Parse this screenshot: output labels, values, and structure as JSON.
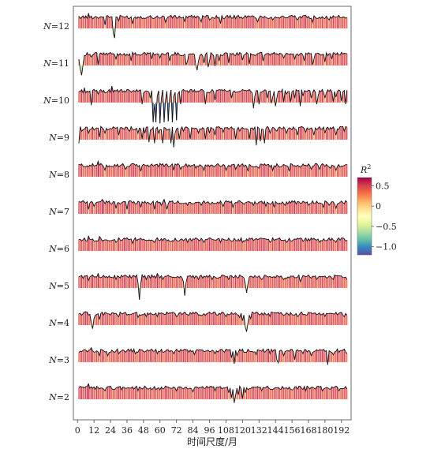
{
  "chart_data": {
    "type": "line",
    "title": "",
    "xlabel": "时间尺度/月",
    "ylabel": "",
    "xlim": [
      -3,
      199
    ],
    "x_ticks": [
      0,
      12,
      24,
      36,
      48,
      60,
      72,
      84,
      96,
      108,
      120,
      132,
      144,
      156,
      168,
      180,
      192
    ],
    "x_tick_labels": [
      "0",
      "12",
      "24",
      "36",
      "48",
      "60",
      "72",
      "84",
      "96",
      "108",
      "120",
      "132",
      "144",
      "156",
      "168",
      "180",
      "192"
    ],
    "x_range": [
      1,
      196
    ],
    "value_range_per_row": [
      -1.2,
      0.7
    ],
    "grid": false,
    "row_labels_top_to_bottom": [
      "N=12",
      "N=11",
      "N=10",
      "N=9",
      "N=8",
      "N=7",
      "N=6",
      "N=5",
      "N=4",
      "N=3",
      "N=2"
    ],
    "colorbar": {
      "title_base": "R",
      "title_sup": "2",
      "placement": "right",
      "range": [
        -1.2,
        0.7
      ],
      "ticks": [
        0.5,
        0,
        -0.5,
        -1.0
      ],
      "tick_labels": [
        "0.5",
        "0",
        "−0.5",
        "−1.0"
      ],
      "colormap": "Spectral",
      "colors": [
        "#9e0142",
        "#d53e4f",
        "#f46d43",
        "#fdae61",
        "#fee08b",
        "#ffffbf",
        "#e6f598",
        "#abdda4",
        "#66c2a5",
        "#3288bd",
        "#5e4fa2"
      ]
    },
    "series": [
      {
        "name": "N=12",
        "baseline": 0.45,
        "anomalies": [
          [
            8,
            0.62
          ],
          [
            20,
            0.05
          ],
          [
            26,
            -0.35
          ],
          [
            27,
            -0.6
          ],
          [
            30,
            0.25
          ],
          [
            40,
            0.1
          ],
          [
            64,
            0.18
          ],
          [
            78,
            0.2
          ],
          [
            90,
            0.2
          ],
          [
            96,
            0.3
          ],
          [
            104,
            0.12
          ],
          [
            131,
            0.2
          ],
          [
            142,
            0.3
          ],
          [
            160,
            0.3
          ],
          [
            171,
            0.18
          ],
          [
            183,
            0.3
          ]
        ]
      },
      {
        "name": "N=11",
        "baseline": 0.45,
        "anomalies": [
          [
            1,
            0.2
          ],
          [
            2,
            -0.3
          ],
          [
            3,
            -0.6
          ],
          [
            4,
            -0.1
          ],
          [
            10,
            0.3
          ],
          [
            15,
            -0.1
          ],
          [
            28,
            0.2
          ],
          [
            39,
            0.1
          ],
          [
            54,
            0.2
          ],
          [
            60,
            0.25
          ],
          [
            67,
            0.1
          ],
          [
            79,
            -0.1
          ],
          [
            80,
            0.1
          ],
          [
            86,
            -0.1
          ],
          [
            87,
            -0.35
          ],
          [
            88,
            0.1
          ],
          [
            92,
            0.0
          ],
          [
            95,
            -0.2
          ],
          [
            96,
            0.1
          ],
          [
            100,
            -0.15
          ],
          [
            103,
            0.1
          ],
          [
            110,
            0.0
          ],
          [
            120,
            0.15
          ],
          [
            125,
            -0.05
          ],
          [
            135,
            0.1
          ],
          [
            150,
            0.25
          ],
          [
            158,
            0.2
          ],
          [
            165,
            0.1
          ],
          [
            171,
            -0.1
          ],
          [
            172,
            0.2
          ],
          [
            180,
            0.05
          ],
          [
            185,
            0.2
          ]
        ]
      },
      {
        "name": "N=10",
        "baseline": 0.45,
        "anomalies": [
          [
            5,
            0.6
          ],
          [
            10,
            -0.25
          ],
          [
            15,
            0.3
          ],
          [
            25,
            0.7
          ],
          [
            35,
            0.4
          ],
          [
            47,
            -0.2
          ],
          [
            53,
            0.1
          ],
          [
            55,
            -1.1
          ],
          [
            56,
            -0.2
          ],
          [
            57,
            -1.1
          ],
          [
            58,
            0.2
          ],
          [
            60,
            -1.15
          ],
          [
            61,
            0.1
          ],
          [
            63,
            -1.1
          ],
          [
            64,
            0.0
          ],
          [
            66,
            -1.05
          ],
          [
            67,
            0.15
          ],
          [
            69,
            -1.1
          ],
          [
            70,
            0.2
          ],
          [
            72,
            -1.0
          ],
          [
            73,
            0.3
          ],
          [
            75,
            -0.2
          ],
          [
            93,
            -0.2
          ],
          [
            100,
            0.0
          ],
          [
            112,
            0.1
          ],
          [
            128,
            -0.4
          ],
          [
            129,
            0.2
          ],
          [
            132,
            -0.2
          ],
          [
            138,
            0.1
          ],
          [
            141,
            -0.15
          ],
          [
            142,
            0.15
          ],
          [
            144,
            -0.3
          ],
          [
            145,
            0.1
          ],
          [
            150,
            -0.1
          ],
          [
            152,
            0.3
          ],
          [
            155,
            -0.1
          ],
          [
            158,
            0.1
          ],
          [
            162,
            -0.3
          ],
          [
            164,
            0.2
          ],
          [
            170,
            0.1
          ],
          [
            174,
            -0.2
          ],
          [
            175,
            0.2
          ],
          [
            180,
            0.1
          ],
          [
            186,
            -0.1
          ],
          [
            188,
            0.15
          ],
          [
            192,
            -0.05
          ],
          [
            195,
            -0.2
          ]
        ]
      },
      {
        "name": "N=9",
        "baseline": 0.45,
        "anomalies": [
          [
            1,
            -0.3
          ],
          [
            3,
            0.3
          ],
          [
            8,
            0.2
          ],
          [
            12,
            0.35
          ],
          [
            16,
            0.0
          ],
          [
            20,
            0.2
          ],
          [
            30,
            0.1
          ],
          [
            38,
            0.3
          ],
          [
            44,
            0.2
          ],
          [
            47,
            -0.1
          ],
          [
            49,
            0.2
          ],
          [
            52,
            -0.25
          ],
          [
            56,
            -0.3
          ],
          [
            59,
            0.2
          ],
          [
            62,
            -0.3
          ],
          [
            65,
            0.35
          ],
          [
            68,
            -0.3
          ],
          [
            70,
            -0.5
          ],
          [
            71,
            0.2
          ],
          [
            74,
            -0.1
          ],
          [
            77,
            0.3
          ],
          [
            82,
            -0.1
          ],
          [
            88,
            0.2
          ],
          [
            93,
            -0.1
          ],
          [
            96,
            0.2
          ],
          [
            100,
            0.1
          ],
          [
            106,
            0.25
          ],
          [
            115,
            -0.1
          ],
          [
            118,
            0.3
          ],
          [
            125,
            -0.1
          ],
          [
            130,
            -0.4
          ],
          [
            133,
            -0.2
          ],
          [
            136,
            -0.3
          ],
          [
            140,
            0.2
          ],
          [
            145,
            0.3
          ],
          [
            152,
            0.2
          ],
          [
            160,
            0.1
          ],
          [
            166,
            0.25
          ],
          [
            172,
            0.1
          ],
          [
            180,
            0.2
          ],
          [
            188,
            0.1
          ],
          [
            194,
            0.3
          ]
        ]
      },
      {
        "name": "N=8",
        "baseline": 0.45,
        "anomalies": [
          [
            15,
            0.65
          ],
          [
            20,
            0.2
          ],
          [
            35,
            0.25
          ],
          [
            46,
            0.15
          ],
          [
            60,
            0.55
          ],
          [
            70,
            0.2
          ],
          [
            75,
            0.25
          ],
          [
            86,
            0.3
          ],
          [
            92,
            0.2
          ],
          [
            108,
            0.2
          ],
          [
            115,
            0.25
          ],
          [
            124,
            0.15
          ],
          [
            132,
            0.3
          ],
          [
            142,
            0.2
          ],
          [
            154,
            0.15
          ],
          [
            162,
            0.35
          ],
          [
            170,
            0.25
          ],
          [
            176,
            0.25
          ],
          [
            184,
            0.3
          ],
          [
            188,
            0.2
          ]
        ]
      },
      {
        "name": "N=7",
        "baseline": 0.45,
        "anomalies": [
          [
            8,
            0.1
          ],
          [
            12,
            0.25
          ],
          [
            18,
            0.6
          ],
          [
            28,
            0.15
          ],
          [
            36,
            0.1
          ],
          [
            46,
            0.2
          ],
          [
            53,
            0.35
          ],
          [
            56,
            0.1
          ],
          [
            61,
            0.3
          ],
          [
            63,
            0.6
          ],
          [
            65,
            0.1
          ],
          [
            80,
            0.3
          ],
          [
            90,
            0.3
          ],
          [
            106,
            0.25
          ],
          [
            113,
            0.2
          ],
          [
            121,
            0.35
          ],
          [
            128,
            0.3
          ],
          [
            137,
            0.25
          ],
          [
            143,
            0.2
          ],
          [
            151,
            0.3
          ],
          [
            168,
            0.3
          ],
          [
            179,
            0.2
          ],
          [
            183,
            0.3
          ],
          [
            188,
            0.15
          ]
        ]
      },
      {
        "name": "N=6",
        "baseline": 0.45,
        "anomalies": [
          [
            8,
            0.62
          ],
          [
            16,
            0.6
          ],
          [
            28,
            0.3
          ],
          [
            40,
            0.25
          ],
          [
            56,
            0.3
          ],
          [
            68,
            0.35
          ],
          [
            80,
            0.3
          ],
          [
            92,
            0.3
          ],
          [
            104,
            0.3
          ],
          [
            120,
            0.3
          ],
          [
            140,
            0.3
          ],
          [
            152,
            0.3
          ],
          [
            164,
            0.35
          ],
          [
            176,
            0.3
          ],
          [
            188,
            0.3
          ]
        ]
      },
      {
        "name": "N=5",
        "baseline": 0.45,
        "anomalies": [
          [
            8,
            0.25
          ],
          [
            15,
            0.6
          ],
          [
            28,
            0.3
          ],
          [
            44,
            0.15
          ],
          [
            45,
            -0.7
          ],
          [
            46,
            0.1
          ],
          [
            50,
            0.3
          ],
          [
            58,
            0.6
          ],
          [
            62,
            0.3
          ],
          [
            77,
            0.2
          ],
          [
            78,
            -0.5
          ],
          [
            79,
            0.15
          ],
          [
            88,
            0.3
          ],
          [
            98,
            0.3
          ],
          [
            110,
            0.3
          ],
          [
            122,
            0.1
          ],
          [
            123,
            -0.35
          ],
          [
            124,
            0.1
          ],
          [
            134,
            0.3
          ],
          [
            150,
            0.3
          ],
          [
            162,
            0.2
          ],
          [
            174,
            0.3
          ],
          [
            186,
            0.3
          ],
          [
            196,
            0.3
          ]
        ]
      },
      {
        "name": "N=4",
        "baseline": 0.45,
        "anomalies": [
          [
            6,
            0.55
          ],
          [
            10,
            0.0
          ],
          [
            11,
            -0.3
          ],
          [
            12,
            0.2
          ],
          [
            16,
            0.15
          ],
          [
            30,
            0.3
          ],
          [
            44,
            0.25
          ],
          [
            50,
            0.3
          ],
          [
            58,
            0.3
          ],
          [
            72,
            0.3
          ],
          [
            90,
            0.35
          ],
          [
            108,
            0.3
          ],
          [
            118,
            0.25
          ],
          [
            120,
            0.1
          ],
          [
            122,
            -0.2
          ],
          [
            123,
            -0.45
          ],
          [
            124,
            0.0
          ],
          [
            126,
            0.2
          ],
          [
            140,
            0.3
          ],
          [
            160,
            0.3
          ],
          [
            180,
            0.3
          ],
          [
            194,
            0.3
          ]
        ]
      },
      {
        "name": "N=3",
        "baseline": 0.45,
        "anomalies": [
          [
            10,
            0.6
          ],
          [
            16,
            0.2
          ],
          [
            18,
            0.5
          ],
          [
            22,
            0.2
          ],
          [
            30,
            0.3
          ],
          [
            42,
            0.3
          ],
          [
            58,
            0.3
          ],
          [
            70,
            0.3
          ],
          [
            85,
            0.25
          ],
          [
            100,
            0.3
          ],
          [
            112,
            0.1
          ],
          [
            114,
            -0.2
          ],
          [
            116,
            0.2
          ],
          [
            130,
            0.25
          ],
          [
            140,
            0.3
          ],
          [
            145,
            0.0
          ],
          [
            146,
            -0.15
          ],
          [
            150,
            0.2
          ],
          [
            158,
            0.0
          ],
          [
            164,
            0.3
          ],
          [
            170,
            0.2
          ],
          [
            182,
            -0.25
          ],
          [
            186,
            0.25
          ],
          [
            196,
            0.3
          ]
        ]
      },
      {
        "name": "N=2",
        "baseline": 0.45,
        "anomalies": [
          [
            8,
            0.65
          ],
          [
            20,
            0.3
          ],
          [
            32,
            0.35
          ],
          [
            44,
            0.3
          ],
          [
            60,
            0.35
          ],
          [
            72,
            0.3
          ],
          [
            84,
            0.25
          ],
          [
            100,
            0.3
          ],
          [
            110,
            0.2
          ],
          [
            112,
            -0.05
          ],
          [
            114,
            -0.3
          ],
          [
            115,
            0.1
          ],
          [
            117,
            0.1
          ],
          [
            120,
            -0.1
          ],
          [
            122,
            0.2
          ],
          [
            134,
            0.3
          ],
          [
            156,
            0.35
          ],
          [
            166,
            0.3
          ],
          [
            178,
            0.3
          ],
          [
            190,
            0.3
          ]
        ]
      }
    ]
  }
}
